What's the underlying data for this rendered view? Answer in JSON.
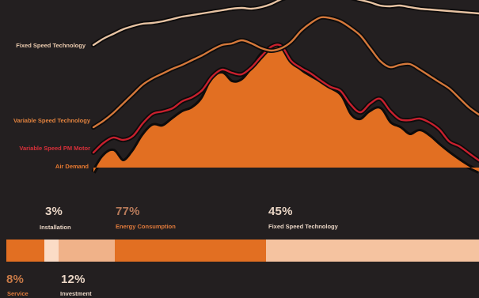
{
  "chart_data": [
    {
      "type": "line",
      "x_unit": "time",
      "series": [
        {
          "name": "Fixed Speed Technology",
          "color": "#e7c3a3",
          "values": [
            0,
            8,
            14,
            20,
            24,
            27,
            28,
            30,
            33,
            36,
            38,
            40,
            42,
            44,
            46,
            47,
            46,
            48,
            52,
            58,
            62,
            66,
            68,
            66,
            63,
            62,
            60,
            57,
            54,
            50,
            49,
            50,
            48,
            46,
            45,
            44,
            43,
            42,
            41,
            40
          ]
        },
        {
          "name": "Variable Speed Technology",
          "color": "#d4783b",
          "values": [
            -104,
            -96,
            -86,
            -74,
            -62,
            -50,
            -42,
            -36,
            -30,
            -25,
            -19,
            -13,
            -6,
            0,
            2,
            6,
            2,
            -4,
            -7,
            -4,
            4,
            18,
            28,
            35,
            34,
            30,
            22,
            12,
            -4,
            -20,
            -28,
            -25,
            -24,
            -31,
            -39,
            -47,
            -55,
            -67,
            -79,
            -88
          ]
        },
        {
          "name": "Variable Speed PM Motor",
          "color": "#c8202e",
          "values": [
            -136,
            -124,
            -117,
            -120,
            -115,
            -99,
            -87,
            -84,
            -80,
            -71,
            -66,
            -57,
            -40,
            -31,
            -35,
            -37,
            -28,
            -14,
            -2,
            -1,
            -20,
            -29,
            -36,
            -45,
            -53,
            -58,
            -75,
            -85,
            -74,
            -68,
            -83,
            -94,
            -95,
            -93,
            -98,
            -107,
            -122,
            -128,
            -137,
            -146
          ]
        },
        {
          "name": "Air Demand",
          "color": "#e26f22",
          "type": "area",
          "values": [
            -161,
            -141,
            -134,
            -147,
            -135,
            -115,
            -102,
            -103,
            -94,
            -85,
            -80,
            -68,
            -44,
            -36,
            -47,
            -45,
            -31,
            -12,
            -4,
            -2,
            -21,
            -33,
            -41,
            -48,
            -56,
            -65,
            -89,
            -95,
            -85,
            -81,
            -99,
            -105,
            -114,
            -109,
            -116,
            -127,
            -137,
            -146,
            -154,
            -160
          ]
        }
      ]
    },
    {
      "type": "bar",
      "stacked": true,
      "unit": "%",
      "segments": [
        {
          "name": "Service",
          "value": 8,
          "label": "8%",
          "color": "#e26f22"
        },
        {
          "name": "Installation",
          "value": 3,
          "label": "3%",
          "color": "#fbdcc6"
        },
        {
          "name": "Investment",
          "value": 12,
          "label": "12%",
          "color": "#f0b289"
        },
        {
          "name": "Energy Consumption",
          "value": 77,
          "label": "77%",
          "color": "#e26f22"
        }
      ],
      "overlay": {
        "name": "Fixed Speed Technology",
        "label": "45%",
        "value": 45,
        "color": "#f5c3a0"
      }
    }
  ],
  "colors": {
    "background": "#231f20",
    "pct_light": "#e9d5c5",
    "pct_orange": "#e07a3c"
  }
}
